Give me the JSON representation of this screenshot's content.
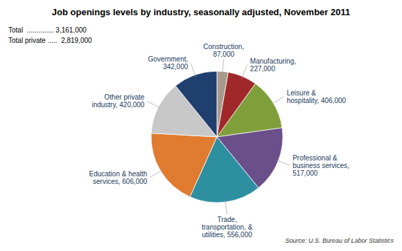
{
  "chart_data": {
    "type": "pie",
    "title": "Job openings levels by industry, seasonally adjusted, November 2011",
    "categories": [
      "Construction,\n87,000",
      "Manufacturing,\n227,000",
      "Leisure &\nhospitality, 406,000",
      "Professional &\nbusiness services,\n517,000",
      "Trade,\ntransportation, &\nutilities, 556,000",
      "Education & health\nservices, 606,000",
      "Other private\nindustry, 420,000",
      "Government,\n342,000"
    ],
    "values": [
      87,
      227,
      406,
      517,
      556,
      606,
      420,
      342
    ],
    "colors": [
      "#a89a8a",
      "#a0282a",
      "#7f9f3a",
      "#6b4f8a",
      "#2e8fa0",
      "#e07b30",
      "#c8c8c8",
      "#1f3f6e"
    ],
    "annotations": [
      "Total  .............. 3,161,000",
      "Total private .....  2,819,000",
      "Source: U.S. Bureau of Labor Statistics"
    ]
  }
}
